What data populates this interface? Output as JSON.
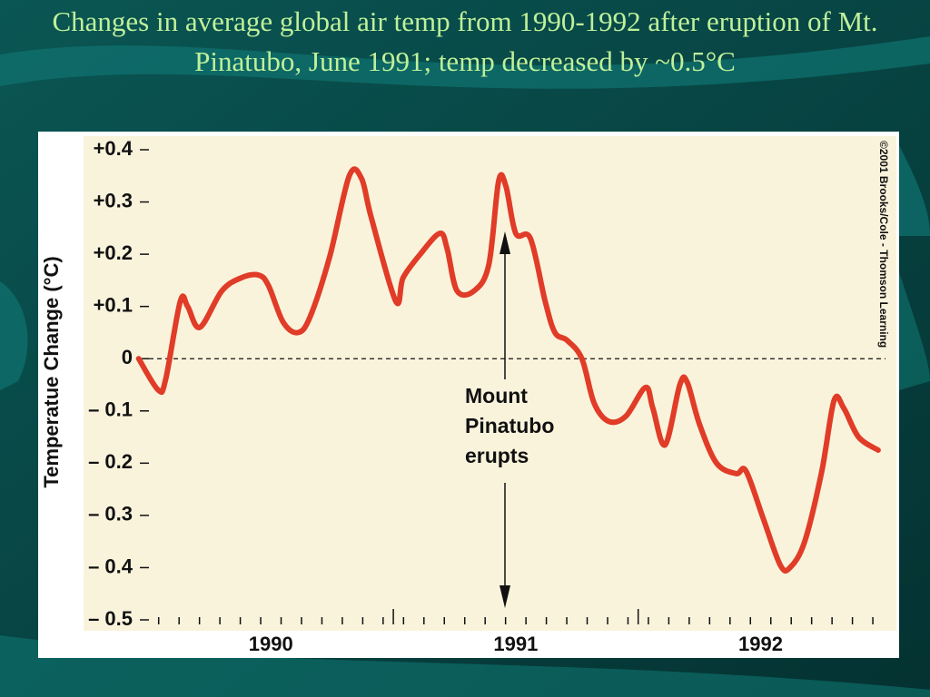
{
  "title": "Changes in average global air temp from 1990-1992 after eruption of Mt. Pinatubo, June 1991; temp decreased by ~0.5°C",
  "chart_data": {
    "type": "line",
    "y_label": "Temperatue Change (°C)",
    "annotation": [
      "Mount",
      "Pinatubo",
      "erupts"
    ],
    "credit": "©2001 Brooks/Cole - Thomson Learning",
    "xlim": [
      1989.95,
      1993.01
    ],
    "xticks": [
      {
        "value": 1990.5,
        "label": "1990"
      },
      {
        "value": 1991.5,
        "label": "1991"
      },
      {
        "value": 1992.5,
        "label": "1992"
      }
    ],
    "ylim": [
      -0.5,
      0.4
    ],
    "yticks": [
      {
        "value": 0.4,
        "label": "+0.4"
      },
      {
        "value": 0.3,
        "label": "+0.3"
      },
      {
        "value": 0.2,
        "label": "+0.2"
      },
      {
        "value": 0.1,
        "label": "+0.1"
      },
      0,
      {
        "value": -0.1,
        "label": "– 0.1"
      },
      {
        "value": -0.2,
        "label": "– 0.2"
      },
      {
        "value": -0.3,
        "label": "– 0.3"
      },
      {
        "value": -0.4,
        "label": "– 0.4"
      },
      {
        "value": -0.5,
        "label": "– 0.5"
      }
    ],
    "series": [
      {
        "color": "#e03c28",
        "x": [
          1989.96,
          1990.04,
          1990.07,
          1990.13,
          1990.16,
          1990.21,
          1990.3,
          1990.38,
          1990.45,
          1990.49,
          1990.55,
          1990.61,
          1990.66,
          1990.74,
          1990.82,
          1990.87,
          1990.91,
          1991.01,
          1991.04,
          1991.11,
          1991.19,
          1991.22,
          1991.26,
          1991.33,
          1991.39,
          1991.43,
          1991.46,
          1991.5,
          1991.56,
          1991.62,
          1991.66,
          1991.71,
          1991.77,
          1991.82,
          1991.88,
          1991.95,
          1992.03,
          1992.06,
          1992.11,
          1992.17,
          1992.2,
          1992.25,
          1992.32,
          1992.4,
          1992.44,
          1992.51,
          1992.58,
          1992.62,
          1992.68,
          1992.75,
          1992.8,
          1992.84,
          1992.9,
          1992.98
        ],
        "values": [
          0.0,
          -0.06,
          -0.04,
          0.11,
          0.1,
          0.06,
          0.13,
          0.155,
          0.16,
          0.14,
          0.07,
          0.05,
          0.08,
          0.195,
          0.35,
          0.345,
          0.27,
          0.11,
          0.155,
          0.2,
          0.24,
          0.21,
          0.13,
          0.13,
          0.18,
          0.34,
          0.33,
          0.24,
          0.23,
          0.11,
          0.05,
          0.035,
          0.0,
          -0.085,
          -0.12,
          -0.11,
          -0.055,
          -0.095,
          -0.165,
          -0.05,
          -0.045,
          -0.125,
          -0.2,
          -0.22,
          -0.215,
          -0.305,
          -0.395,
          -0.4,
          -0.35,
          -0.215,
          -0.08,
          -0.095,
          -0.15,
          -0.175
        ]
      }
    ]
  }
}
